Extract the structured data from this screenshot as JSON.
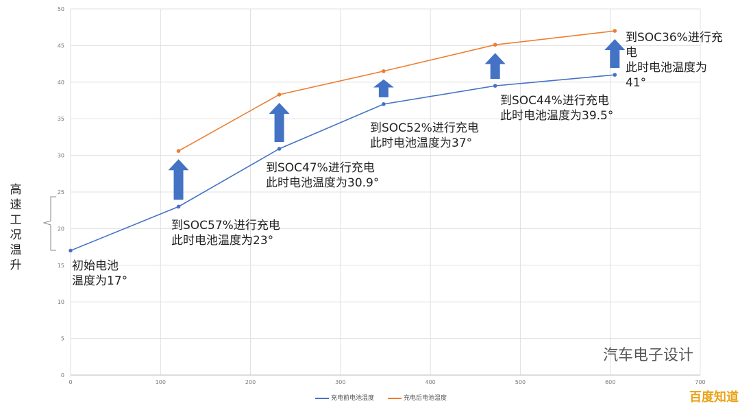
{
  "chart_data": {
    "type": "line",
    "xlim": [
      0,
      700
    ],
    "ylim": [
      0,
      50
    ],
    "xticks": [
      "0",
      "100",
      "200",
      "300",
      "400",
      "500",
      "600",
      "700"
    ],
    "yticks": [
      "0",
      "5",
      "10",
      "15",
      "20",
      "25",
      "30",
      "35",
      "40",
      "45",
      "50"
    ],
    "grid": true,
    "ylabel": "高速工况温升",
    "legend_position": "bottom",
    "series": [
      {
        "name": "充电前电池温度",
        "color": "#4472c4",
        "x": [
          0,
          120,
          232,
          348,
          472,
          605
        ],
        "y": [
          17,
          23,
          30.9,
          37,
          39.5,
          41
        ]
      },
      {
        "name": "充电后电池温度",
        "color": "#ed7d31",
        "x": [
          120,
          232,
          348,
          472,
          605
        ],
        "y": [
          30.6,
          38.3,
          41.5,
          45.1,
          47
        ]
      }
    ],
    "arrow_color": "#4472c4",
    "annotations": [
      "初始电池\n温度为17°",
      "到SOC57%进行充电\n此时电池温度为23°",
      "到SOC47%进行充电\n此时电池温度为30.9°",
      "到SOC52%进行充电\n此时电池温度为37°",
      "到SOC44%进行充电\n此时电池温度为39.5°",
      "到SOC36%进行充\n电\n此时电池温度为\n41°"
    ]
  },
  "watermark": "汽车电子设计",
  "watermark2": "百度知道"
}
